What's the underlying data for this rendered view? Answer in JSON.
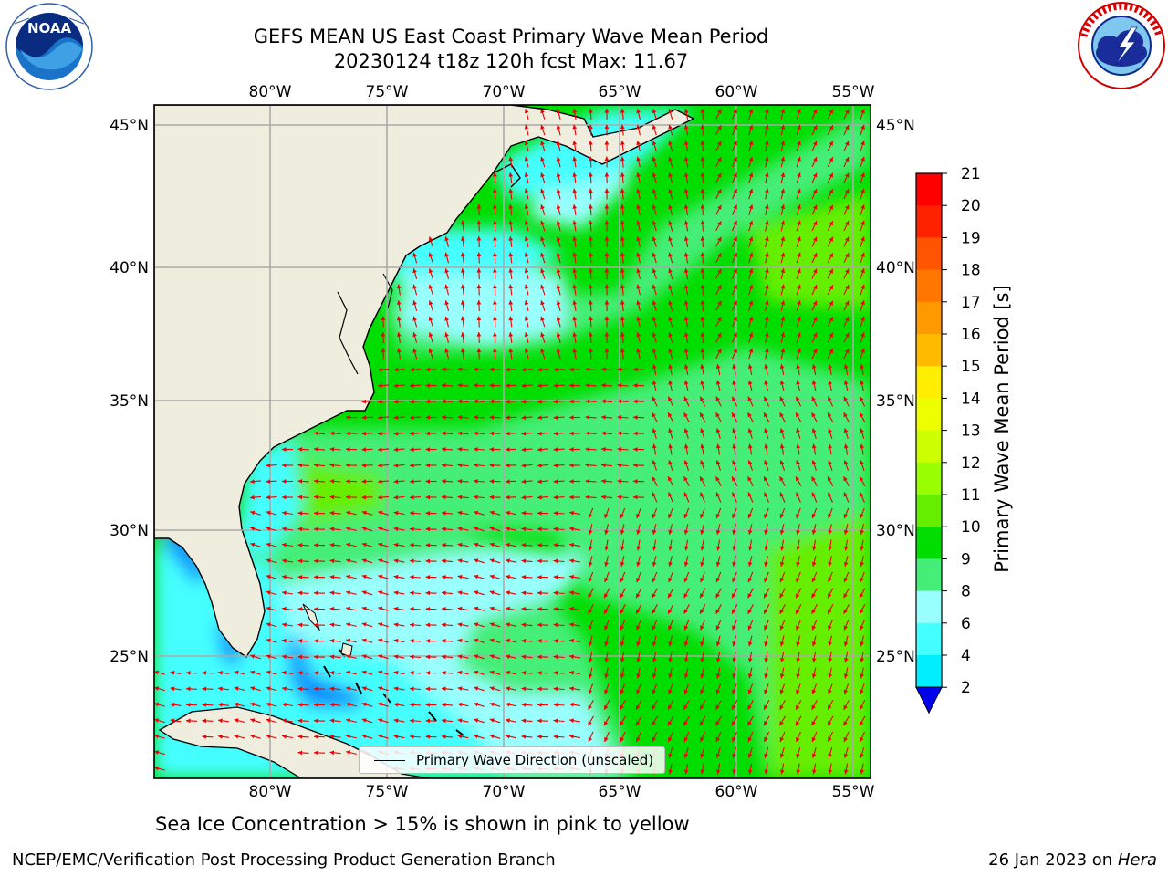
{
  "header": {
    "title_line1": "GEFS MEAN US East Coast Primary Wave Mean Period",
    "title_line2": "20230124 t18z 120h fcst   Max: 11.67"
  },
  "logos": {
    "left": {
      "name": "noaa-logo",
      "text": "NOAA",
      "ring_text": "NATIONAL OCEANIC AND ATMOSPHERIC ADMINISTRATION · U.S. DEPARTMENT OF COMMERCE"
    },
    "right": {
      "name": "nws-logo",
      "ring_text": "NATIONAL WEATHER SERVICE"
    }
  },
  "map": {
    "lon_labels": [
      "80°W",
      "75°W",
      "70°W",
      "65°W",
      "60°W",
      "55°W"
    ],
    "lat_labels": [
      "45°N",
      "40°N",
      "35°N",
      "30°N",
      "25°N"
    ],
    "arrow_color": "#ee0000",
    "land_color": "#efedde",
    "legend_label": "Primary Wave Direction (unscaled)"
  },
  "colorbar": {
    "title": "Primary Wave Mean Period [s]",
    "ticks": [
      "21",
      "20",
      "19",
      "18",
      "17",
      "16",
      "15",
      "14",
      "13",
      "12",
      "11",
      "10",
      "9",
      "8",
      "6",
      "4",
      "2"
    ],
    "colors": [
      "#ff0000",
      "#ff2200",
      "#ff5500",
      "#ff7700",
      "#ff9900",
      "#ffbb00",
      "#ffee00",
      "#eeff00",
      "#ccff00",
      "#99ff00",
      "#66ee00",
      "#00dd00",
      "#44ee77",
      "#99ffff",
      "#44ffff",
      "#00eeff",
      "#0088ff",
      "#0000ee"
    ]
  },
  "caption": "Sea Ice Concentration > 15% is shown in pink to yellow",
  "footer": {
    "left": "NCEP/EMC/Verification Post Processing Product Generation Branch",
    "right_date": "26 Jan 2023 on",
    "right_host": "Hera"
  }
}
